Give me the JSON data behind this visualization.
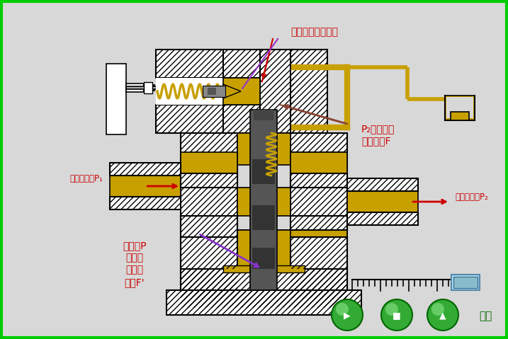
{
  "bg_color": "#d8d8d8",
  "border_color": "#00cc00",
  "gold": "#c8a000",
  "dark_gray": "#555555",
  "red": "#cc0000",
  "purple": "#8833cc",
  "brown": "#884422",
  "green_btn": "#228b22",
  "text_red": "#cc0000",
  "text_green": "#006600",
  "label_top": "由小孔溢流回油箱",
  "label_p2": "P₂等于或大\n于弹簧力F",
  "label_p1": "一次压力油P₁",
  "label_p2b": "二次压力油P₂",
  "label_diff": "压力差P\n等于或\n大于弹\n簧力F'",
  "label_back": "返回",
  "figw": 7.17,
  "figh": 4.79,
  "dpi": 100
}
